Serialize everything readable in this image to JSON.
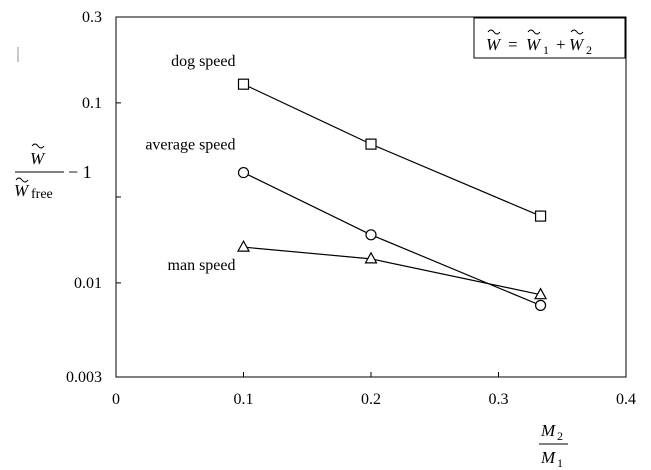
{
  "chart_data": {
    "type": "line",
    "legend_formula": {
      "lhs": "W",
      "equals": "=",
      "rhs_first": "W",
      "rhs_first_sub": "1",
      "plus": "+",
      "rhs_second": "W",
      "rhs_second_sub": "2"
    },
    "ylabel": {
      "numerator": "W",
      "denominator": "W",
      "denominator_sub": "free",
      "suffix": "− 1"
    },
    "xlabel": {
      "numerator": "M",
      "numerator_sub": "2",
      "denominator": "M",
      "denominator_sub": "1"
    },
    "xlim": [
      0,
      0.4
    ],
    "ylim": [
      0.003,
      0.3
    ],
    "yscale": "log",
    "grid": false,
    "x_ticks": [
      {
        "value": 0,
        "label": "0"
      },
      {
        "value": 0.1,
        "label": "0.1"
      },
      {
        "value": 0.2,
        "label": "0.2"
      },
      {
        "value": 0.3,
        "label": "0.3"
      },
      {
        "value": 0.4,
        "label": "0.4"
      }
    ],
    "y_ticks": [
      {
        "value": 0.003,
        "label": "0.003"
      },
      {
        "value": 0.01,
        "label": "0.01"
      },
      {
        "value": 0.03,
        "label": ""
      },
      {
        "value": 0.1,
        "label": "0.1"
      },
      {
        "value": 0.3,
        "label": "0.3"
      }
    ],
    "series": [
      {
        "name": "dog speed",
        "marker": "square",
        "x": [
          0.1,
          0.2,
          0.333
        ],
        "y": [
          0.127,
          0.059,
          0.0235
        ],
        "label_anchor": [
          0.1,
          0.16
        ]
      },
      {
        "name": "average speed",
        "marker": "circle",
        "x": [
          0.1,
          0.2,
          0.333
        ],
        "y": [
          0.041,
          0.0185,
          0.0075
        ],
        "label_anchor": [
          0.1,
          0.055
        ]
      },
      {
        "name": "man speed",
        "marker": "triangle",
        "x": [
          0.1,
          0.2,
          0.333
        ],
        "y": [
          0.0158,
          0.0136,
          0.0086
        ],
        "label_anchor": [
          0.1,
          0.0118
        ]
      }
    ]
  }
}
